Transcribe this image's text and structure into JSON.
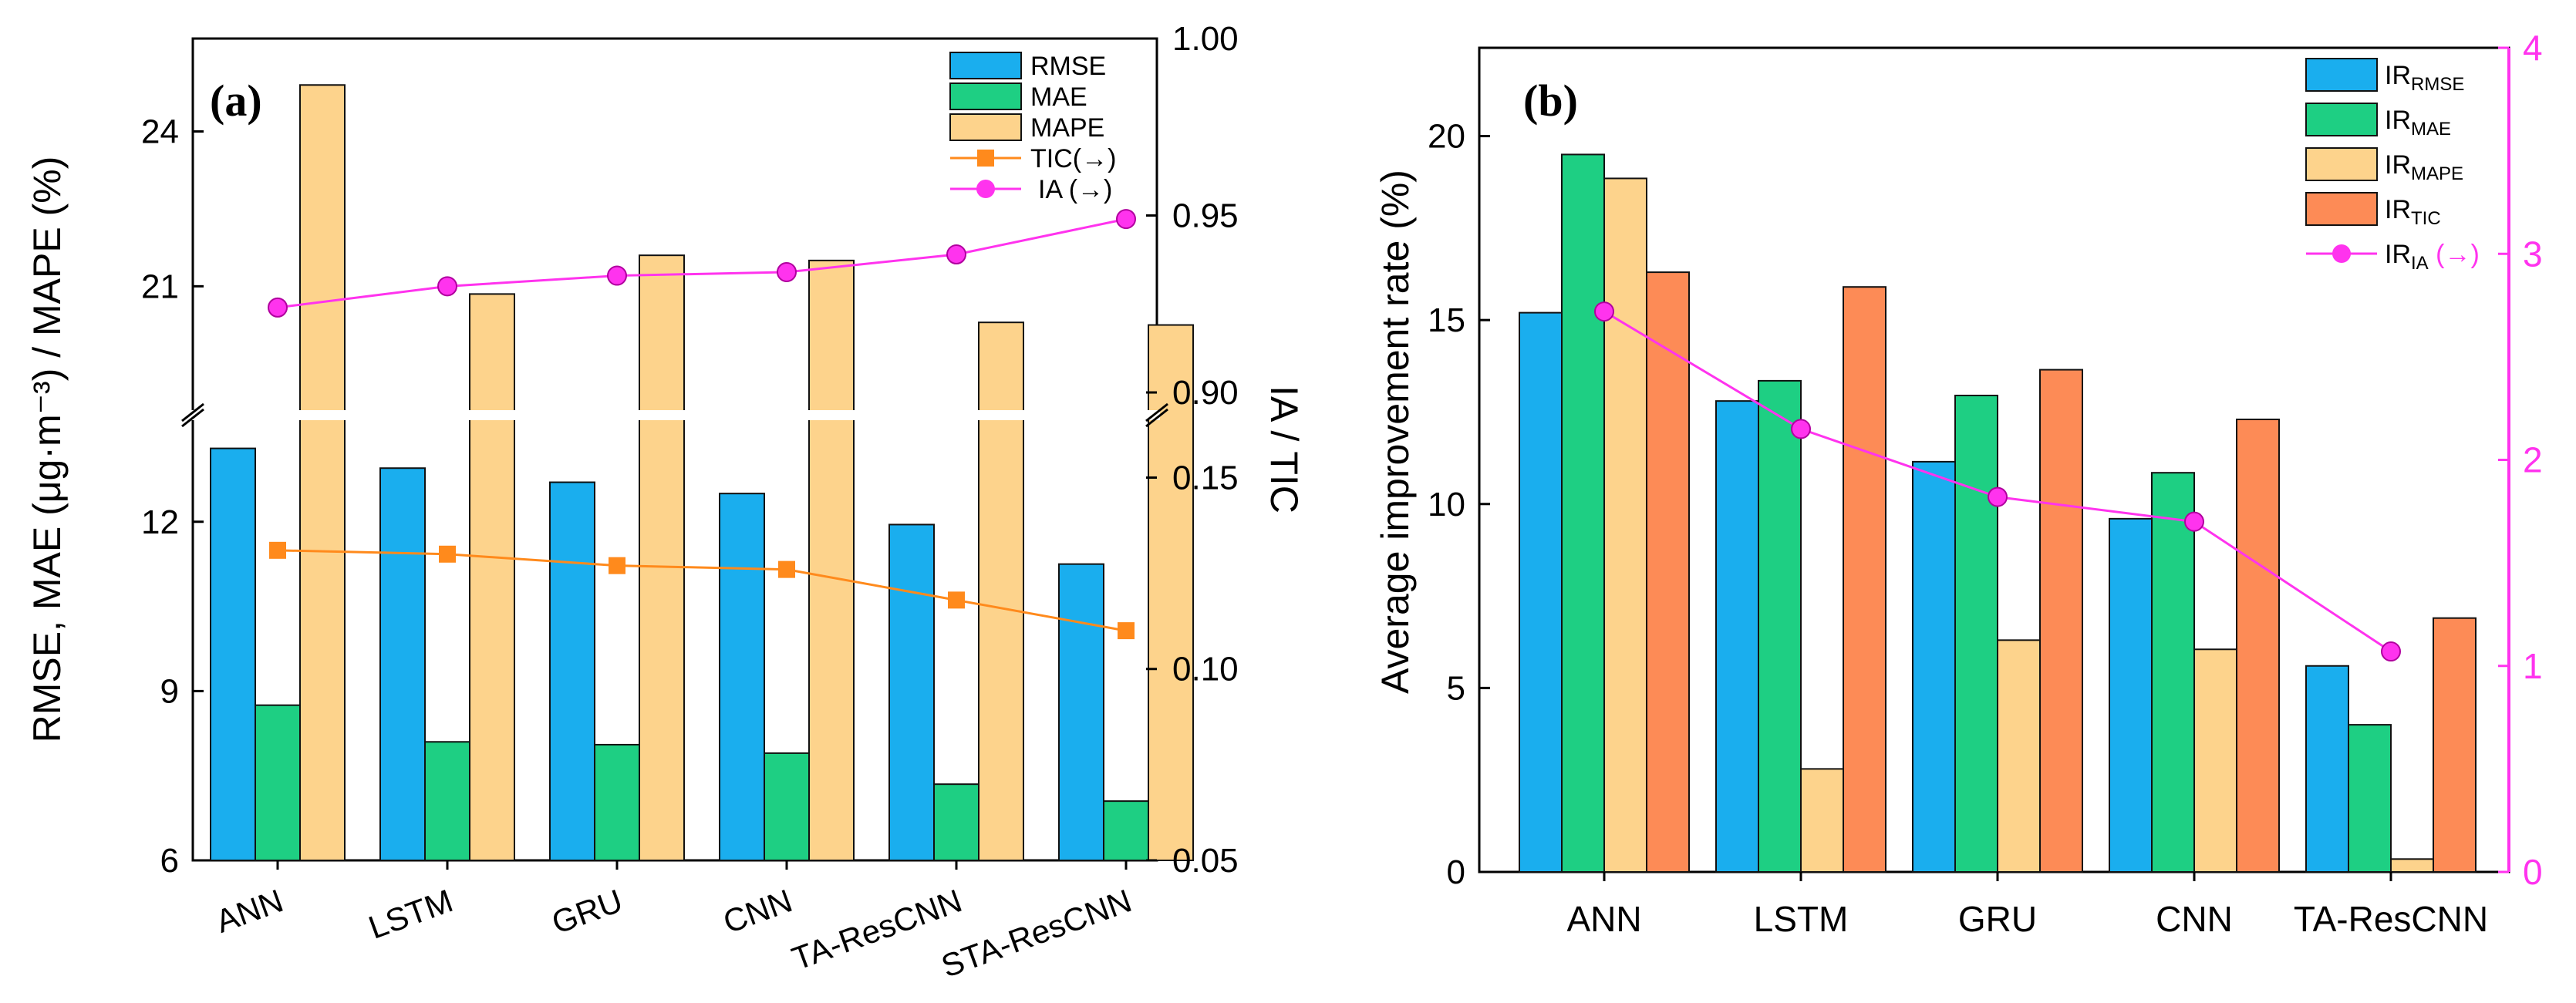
{
  "chart_data": [
    {
      "panel": "(a)",
      "type": "bar+line",
      "categories": [
        "ANN",
        "LSTM",
        "GRU",
        "CNN",
        "TA-ResCNN",
        "STA-ResCNN"
      ],
      "series": [
        {
          "name": "RMSE",
          "axis": "left",
          "kind": "bar",
          "values": [
            13.3,
            12.95,
            12.7,
            12.5,
            11.95,
            11.25
          ]
        },
        {
          "name": "MAE",
          "axis": "left",
          "kind": "bar",
          "values": [
            8.75,
            8.1,
            8.05,
            7.9,
            7.35,
            7.05
          ]
        },
        {
          "name": "MAPE",
          "axis": "left",
          "kind": "bar",
          "values": [
            24.9,
            20.85,
            21.6,
            21.5,
            20.3,
            20.25
          ]
        },
        {
          "name": "TIC(→)",
          "axis": "right",
          "kind": "line",
          "values": [
            0.131,
            0.13,
            0.127,
            0.126,
            0.118,
            0.11
          ]
        },
        {
          "name": "IA (→)",
          "axis": "right",
          "kind": "line",
          "values": [
            0.924,
            0.93,
            0.933,
            0.934,
            0.939,
            0.949
          ]
        }
      ],
      "left_axis": {
        "label": "RMSE, MAE (μg·m⁻³) / MAPE (%)",
        "lower_range": [
          6,
          13.8
        ],
        "lower_ticks": [
          "6",
          "9",
          "12"
        ],
        "upper_range": [
          18.6,
          25.8
        ],
        "upper_ticks": [
          "21",
          "24"
        ]
      },
      "right_axis": {
        "label": "IA / TIC",
        "lower_range": [
          0.05,
          0.165
        ],
        "lower_ticks": [
          "0.05",
          "0.10",
          "0.15"
        ],
        "upper_range": [
          0.895,
          1.0
        ],
        "upper_ticks": [
          "0.90",
          "0.95",
          "1.00"
        ]
      },
      "colors": {
        "RMSE": "#1AAEEE",
        "MAE": "#1ECF83",
        "MAPE": "#FDD38C",
        "TIC": "#FF8A1C",
        "IA": "#FF33EE"
      }
    },
    {
      "panel": "(b)",
      "type": "bar+line",
      "categories": [
        "ANN",
        "LSTM",
        "GRU",
        "CNN",
        "TA-ResCNN"
      ],
      "series": [
        {
          "name": "IR",
          "sub": "RMSE",
          "axis": "left",
          "kind": "bar",
          "values": [
            15.2,
            12.8,
            11.15,
            9.6,
            5.6
          ]
        },
        {
          "name": "IR",
          "sub": "MAE",
          "axis": "left",
          "kind": "bar",
          "values": [
            19.5,
            13.35,
            12.95,
            10.85,
            4.0
          ]
        },
        {
          "name": "IR",
          "sub": "MAPE",
          "axis": "left",
          "kind": "bar",
          "values": [
            18.85,
            2.8,
            6.3,
            6.05,
            0.35
          ]
        },
        {
          "name": "IR",
          "sub": "TIC",
          "axis": "left",
          "kind": "bar",
          "values": [
            16.3,
            15.9,
            13.65,
            12.3,
            6.9
          ]
        },
        {
          "name": "IR",
          "sub": "IA",
          "suffix": " (→)",
          "axis": "right",
          "kind": "line",
          "values": [
            2.72,
            2.15,
            1.82,
            1.7,
            1.07
          ]
        }
      ],
      "left_axis": {
        "label": "Average improvement rate (%)",
        "range": [
          0,
          22.4
        ],
        "ticks": [
          "0",
          "5",
          "10",
          "15",
          "20"
        ]
      },
      "right_axis": {
        "range": [
          0,
          4
        ],
        "ticks": [
          "0",
          "1",
          "2",
          "3",
          "4"
        ]
      },
      "colors": {
        "IR_RMSE": "#1AAEEE",
        "IR_MAE": "#1ECF83",
        "IR_MAPE": "#FDD38C",
        "IR_TIC": "#FD8B56",
        "IR_IA": "#FF33EE"
      }
    }
  ]
}
